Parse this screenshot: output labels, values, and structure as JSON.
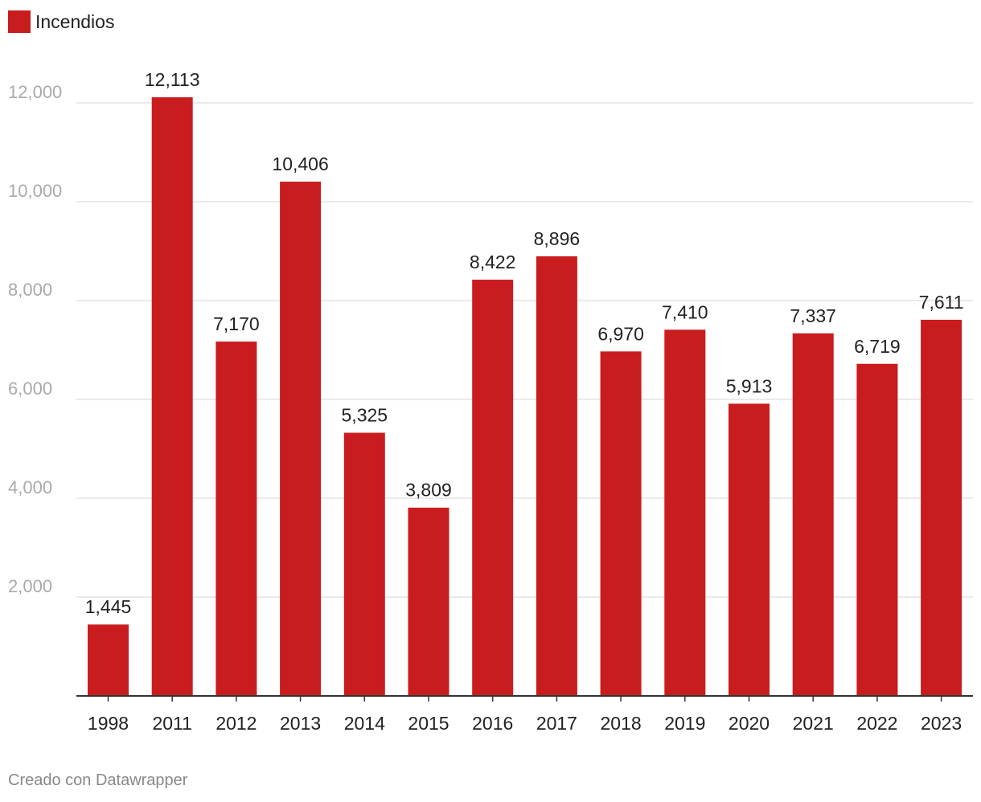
{
  "legend": {
    "label": "Incendios"
  },
  "footer": {
    "credit": "Creado con Datawrapper"
  },
  "colors": {
    "bar": "#c91c1e",
    "grid": "#e4e4e4",
    "axis": "#333333"
  },
  "chart_data": {
    "type": "bar",
    "categories": [
      "1998",
      "2011",
      "2012",
      "2013",
      "2014",
      "2015",
      "2016",
      "2017",
      "2018",
      "2019",
      "2020",
      "2021",
      "2022",
      "2023"
    ],
    "series": [
      {
        "name": "Incendios",
        "values": [
          1445,
          12113,
          7170,
          10406,
          5325,
          3809,
          8422,
          8896,
          6970,
          7410,
          5913,
          7337,
          6719,
          7611
        ]
      }
    ],
    "value_labels": [
      "1,445",
      "12,113",
      "7,170",
      "10,406",
      "5,325",
      "3,809",
      "8,422",
      "8,896",
      "6,970",
      "7,410",
      "5,913",
      "7,337",
      "6,719",
      "7,611"
    ],
    "yticks": [
      2000,
      4000,
      6000,
      8000,
      10000,
      12000
    ],
    "ytick_labels": [
      "2,000",
      "4,000",
      "6,000",
      "8,000",
      "10,000",
      "12,000"
    ],
    "ylim": [
      0,
      12000
    ],
    "grid": true,
    "legend_position": "top-left"
  }
}
